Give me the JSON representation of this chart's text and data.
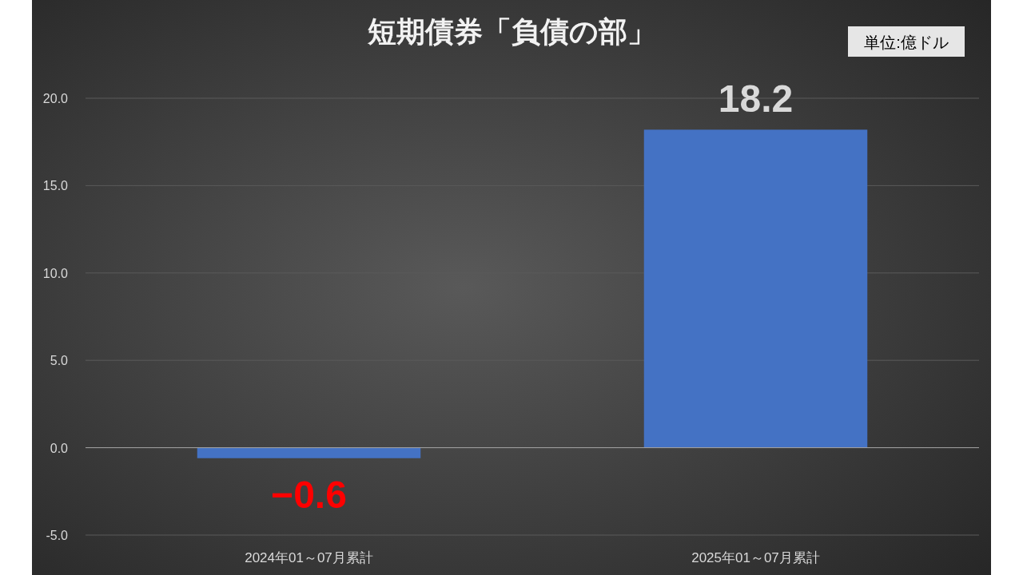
{
  "chart_data": {
    "type": "bar",
    "title": "短期債券「負債の部」",
    "annotations": [
      "単位:億ドル"
    ],
    "categories": [
      "2024年01～07月累計",
      "2025年01～07月累計"
    ],
    "values": [
      -0.6,
      18.2
    ],
    "color": "#4472c4",
    "value_labels": [
      "−0.6",
      "18.2"
    ],
    "ylim": [
      -5,
      20
    ],
    "yticks": [
      {
        "value": -5,
        "label": "-5.0"
      },
      {
        "value": 0,
        "label": "0.0"
      },
      {
        "value": 5,
        "label": "5.0"
      },
      {
        "value": 10,
        "label": "10.0"
      },
      {
        "value": 15,
        "label": "15.0"
      },
      {
        "value": 20,
        "label": "20.0"
      }
    ],
    "grid": "y"
  }
}
